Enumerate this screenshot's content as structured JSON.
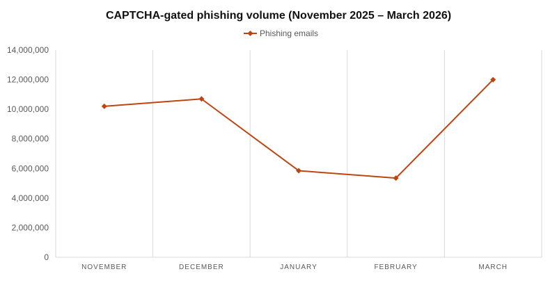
{
  "chart_data": {
    "type": "line",
    "title": "CAPTCHA-gated phishing volume (November 2025 – March 2026)",
    "categories": [
      "NOVEMBER",
      "DECEMBER",
      "JANUARY",
      "FEBRUARY",
      "MARCH"
    ],
    "series": [
      {
        "name": "Phishing emails",
        "values": [
          10200000,
          10700000,
          5850000,
          5350000,
          12000000
        ],
        "color": "#c0440f"
      }
    ],
    "ylim": [
      0,
      14000000
    ],
    "yticks": [
      "0",
      "2,000,000",
      "4,000,000",
      "6,000,000",
      "8,000,000",
      "10,000,000",
      "12,000,000",
      "14,000,000"
    ],
    "ytick_values": [
      0,
      2000000,
      4000000,
      6000000,
      8000000,
      10000000,
      12000000,
      14000000
    ],
    "grid": "vertical",
    "legend": "top-center",
    "marker": "diamond"
  }
}
